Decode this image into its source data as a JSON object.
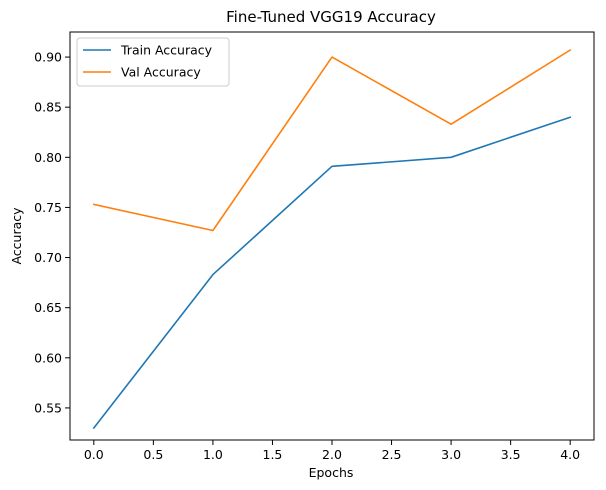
{
  "chart_data": {
    "type": "line",
    "title": "Fine-Tuned VGG19 Accuracy",
    "xlabel": "Epochs",
    "ylabel": "Accuracy",
    "xlim": [
      -0.2,
      4.2
    ],
    "ylim": [
      0.518,
      0.925
    ],
    "x": [
      0,
      1,
      2,
      3,
      4
    ],
    "xticks": [
      0.0,
      0.5,
      1.0,
      1.5,
      2.0,
      2.5,
      3.0,
      3.5,
      4.0
    ],
    "xtick_labels": [
      "0.0",
      "0.5",
      "1.0",
      "1.5",
      "2.0",
      "2.5",
      "3.0",
      "3.5",
      "4.0"
    ],
    "yticks": [
      0.55,
      0.6,
      0.65,
      0.7,
      0.75,
      0.8,
      0.85,
      0.9
    ],
    "ytick_labels": [
      "0.55",
      "0.60",
      "0.65",
      "0.70",
      "0.75",
      "0.80",
      "0.85",
      "0.90"
    ],
    "grid": false,
    "legend_position": "upper-left",
    "series": [
      {
        "name": "Train Accuracy",
        "color": "#1f77b4",
        "values": [
          0.53,
          0.683,
          0.791,
          0.8,
          0.84
        ]
      },
      {
        "name": "Val Accuracy",
        "color": "#ff7f0e",
        "values": [
          0.753,
          0.727,
          0.9,
          0.833,
          0.907
        ]
      }
    ]
  }
}
